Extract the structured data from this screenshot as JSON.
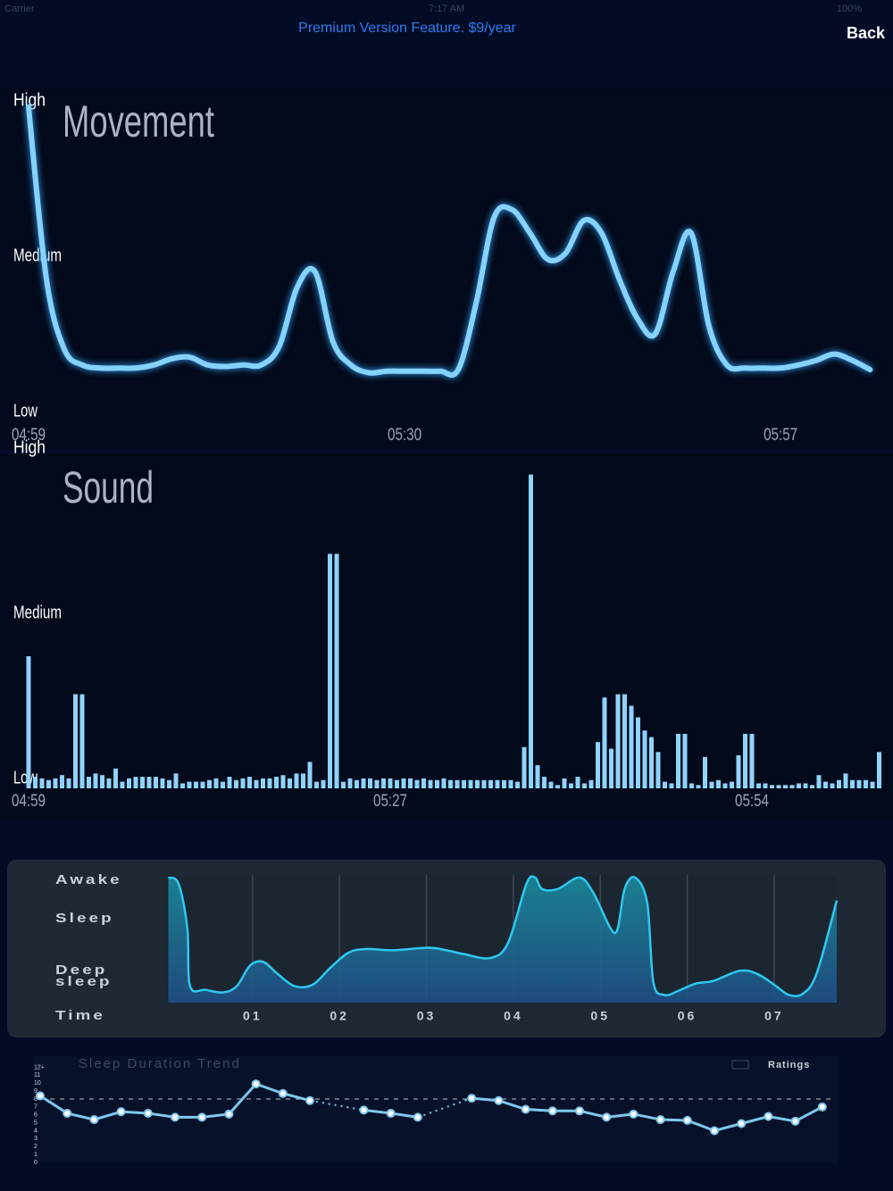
{
  "status": {
    "carrier": "Carrier",
    "time": "7:17 AM",
    "battery": "100%"
  },
  "header": {
    "premium": "Premium Version Feature. $9/year",
    "back": "Back"
  },
  "chart_data": [
    {
      "type": "line",
      "title": "Movement",
      "color": "#86d2ff",
      "categories": [
        "04:59",
        null,
        null,
        null,
        null,
        null,
        null,
        null,
        null,
        null,
        null,
        null,
        null,
        null,
        null,
        null,
        null,
        null,
        null,
        null,
        null,
        "05:30",
        null,
        null,
        null,
        null,
        null,
        null,
        null,
        null,
        null,
        null,
        null,
        null,
        null,
        null,
        null,
        null,
        null,
        null,
        null,
        null,
        "05:57",
        null,
        null,
        null,
        null,
        null
      ],
      "values": [
        1.96,
        0.85,
        0.4,
        0.3,
        0.28,
        0.28,
        0.28,
        0.3,
        0.34,
        0.35,
        0.3,
        0.29,
        0.3,
        0.3,
        0.42,
        0.8,
        0.9,
        0.45,
        0.3,
        0.25,
        0.26,
        0.26,
        0.26,
        0.26,
        0.27,
        0.7,
        1.25,
        1.3,
        1.15,
        0.98,
        1.02,
        1.23,
        1.15,
        0.85,
        0.6,
        0.5,
        0.9,
        1.15,
        0.55,
        0.3,
        0.28,
        0.28,
        0.28,
        0.3,
        0.33,
        0.37,
        0.33,
        0.27
      ],
      "ylim": [
        0,
        2
      ],
      "yticks": [
        {
          "value": 0,
          "label": "Low"
        },
        {
          "value": 1,
          "label": "Medium"
        },
        {
          "value": 2,
          "label": "High"
        }
      ]
    },
    {
      "type": "bar",
      "title": "Sound",
      "color": "#8fd3ff",
      "categories": [
        "04:59",
        null,
        null,
        null,
        null,
        null,
        null,
        null,
        null,
        null,
        null,
        null,
        null,
        null,
        null,
        null,
        null,
        null,
        null,
        null,
        null,
        null,
        null,
        null,
        null,
        null,
        null,
        null,
        null,
        null,
        null,
        null,
        null,
        null,
        null,
        null,
        null,
        null,
        null,
        null,
        null,
        null,
        null,
        null,
        null,
        null,
        null,
        null,
        null,
        null,
        null,
        null,
        null,
        null,
        "05:27",
        null,
        null,
        null,
        null,
        null,
        null,
        null,
        null,
        null,
        null,
        null,
        null,
        null,
        null,
        null,
        null,
        null,
        null,
        null,
        null,
        null,
        null,
        null,
        null,
        null,
        null,
        null,
        null,
        null,
        null,
        null,
        null,
        null,
        null,
        null,
        null,
        null,
        null,
        null,
        null,
        null,
        null,
        null,
        null,
        null,
        null,
        null,
        null,
        null,
        null,
        null,
        null,
        null,
        "05:54",
        null,
        null,
        null,
        null,
        null,
        null,
        null,
        null,
        null,
        null,
        null,
        null,
        null,
        null,
        null,
        null,
        null,
        null,
        null
      ],
      "values": [
        0.8,
        0.07,
        0.06,
        0.05,
        0.06,
        0.08,
        0.06,
        0.57,
        0.57,
        0.07,
        0.09,
        0.08,
        0.06,
        0.12,
        0.04,
        0.06,
        0.07,
        0.07,
        0.07,
        0.07,
        0.06,
        0.05,
        0.09,
        0.03,
        0.04,
        0.04,
        0.04,
        0.05,
        0.06,
        0.04,
        0.07,
        0.05,
        0.06,
        0.07,
        0.05,
        0.06,
        0.06,
        0.07,
        0.08,
        0.06,
        0.09,
        0.09,
        0.16,
        0.04,
        0.05,
        1.42,
        1.42,
        0.04,
        0.06,
        0.05,
        0.06,
        0.06,
        0.05,
        0.06,
        0.06,
        0.05,
        0.06,
        0.06,
        0.05,
        0.06,
        0.05,
        0.05,
        0.06,
        0.05,
        0.05,
        0.05,
        0.05,
        0.05,
        0.05,
        0.05,
        0.05,
        0.05,
        0.05,
        0.04,
        0.25,
        1.9,
        0.14,
        0.07,
        0.04,
        0.02,
        0.06,
        0.03,
        0.07,
        0.03,
        0.05,
        0.28,
        0.55,
        0.24,
        0.57,
        0.57,
        0.5,
        0.43,
        0.35,
        0.31,
        0.22,
        0.04,
        0.03,
        0.33,
        0.33,
        0.03,
        0.02,
        0.19,
        0.04,
        0.05,
        0.03,
        0.04,
        0.2,
        0.33,
        0.33,
        0.03,
        0.03,
        0.02,
        0.02,
        0.02,
        0.02,
        0.03,
        0.03,
        0.02,
        0.08,
        0.04,
        0.03,
        0.05,
        0.09,
        0.05,
        0.05,
        0.05,
        0.04,
        0.22
      ],
      "ylim": [
        0,
        2
      ],
      "yticks": [
        {
          "value": 0,
          "label": "Low"
        },
        {
          "value": 1,
          "label": "Medium"
        },
        {
          "value": 2,
          "label": "High"
        }
      ]
    },
    {
      "type": "area",
      "color": "#2ec8f0",
      "xlabel": "Time",
      "x": [
        0.03,
        0.15,
        0.25,
        0.28,
        0.46,
        0.66,
        0.82,
        0.97,
        1.12,
        1.28,
        1.48,
        1.69,
        1.89,
        2.1,
        2.3,
        2.61,
        3.02,
        3.23,
        3.43,
        3.74,
        3.94,
        4.15,
        4.25,
        4.33,
        4.51,
        4.76,
        4.92,
        5.12,
        5.2,
        5.28,
        5.4,
        5.54,
        5.61,
        5.74,
        5.89,
        6.1,
        6.3,
        6.61,
        6.82,
        7.02,
        7.17,
        7.33,
        7.49,
        7.72
      ],
      "values": [
        9.8,
        9.3,
        5.8,
        1.3,
        1.0,
        0.8,
        1.3,
        2.9,
        3.2,
        2.3,
        1.3,
        1.4,
        2.7,
        3.9,
        4.2,
        4.1,
        4.3,
        4.1,
        3.8,
        3.5,
        4.7,
        9.3,
        9.8,
        8.9,
        8.9,
        9.8,
        8.6,
        5.8,
        5.8,
        8.9,
        9.8,
        7.8,
        1.6,
        0.6,
        0.9,
        1.5,
        1.7,
        2.5,
        2.2,
        1.3,
        0.6,
        0.7,
        2.3,
        8.0
      ],
      "xlim": [
        0,
        7.72
      ],
      "xticks": [
        {
          "value": 1,
          "label": "01"
        },
        {
          "value": 2,
          "label": "02"
        },
        {
          "value": 3,
          "label": "03"
        },
        {
          "value": 4,
          "label": "04"
        },
        {
          "value": 5,
          "label": "05"
        },
        {
          "value": 6,
          "label": "06"
        },
        {
          "value": 7,
          "label": "07"
        }
      ],
      "ylim": [
        0,
        10
      ],
      "yticks": [
        {
          "value": 9.6,
          "label": "Awake"
        },
        {
          "value": 6.6,
          "label": "Sleep"
        },
        {
          "value": 2.1,
          "label": "Deep sleep"
        }
      ],
      "grid": true
    },
    {
      "type": "line",
      "title": "Sleep Duration Trend",
      "legend": "Ratings",
      "color": "#7ec8ee",
      "values": [
        8.4,
        6.2,
        5.4,
        6.4,
        6.2,
        5.7,
        5.7,
        6.1,
        9.9,
        8.7,
        7.8,
        null,
        6.6,
        6.2,
        5.7,
        null,
        8.1,
        7.8,
        6.7,
        6.5,
        6.5,
        5.7,
        6.1,
        5.4,
        5.3,
        4.0,
        4.9,
        5.8,
        5.2,
        7.0
      ],
      "reference_line": 8,
      "ylim": [
        0,
        12.5
      ],
      "yticks": [
        0,
        1,
        2,
        3,
        4,
        5,
        6,
        7,
        8,
        9,
        10,
        11,
        {
          "value": 12,
          "label": "12+"
        }
      ]
    }
  ]
}
